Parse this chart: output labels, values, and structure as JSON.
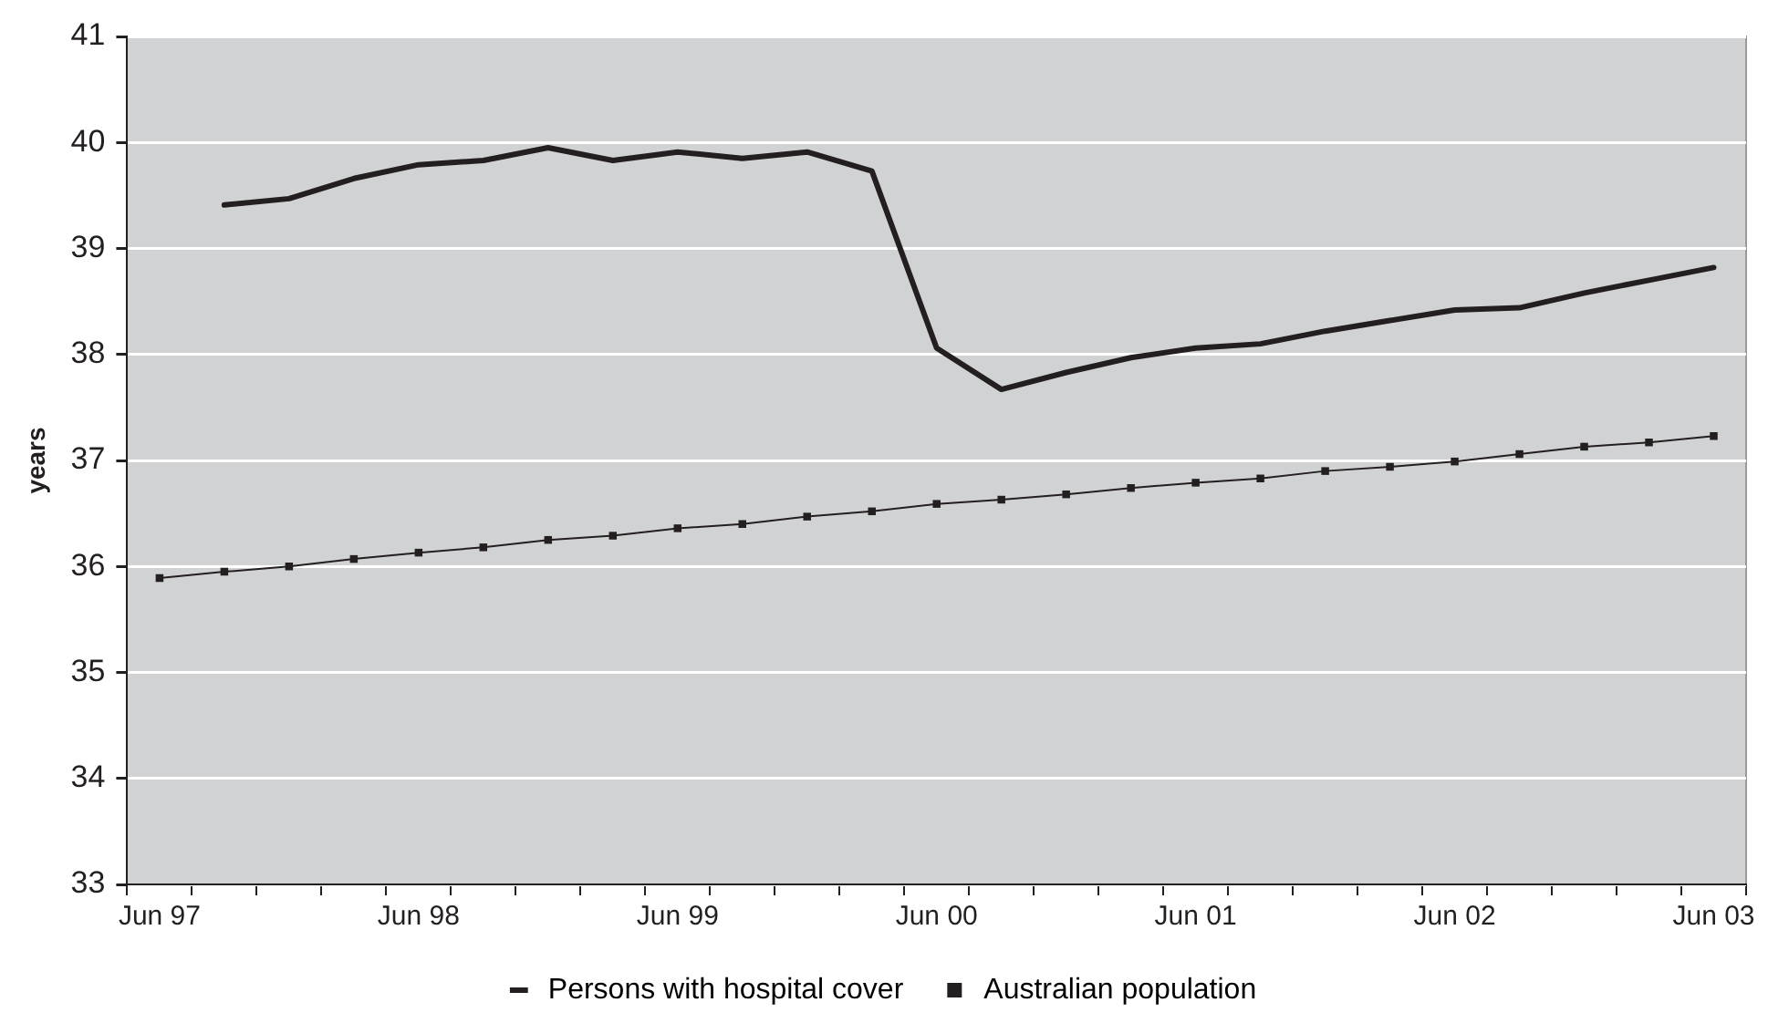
{
  "chart_data": {
    "type": "line",
    "ylabel": "years",
    "categories": [
      "Jun 97",
      null,
      null,
      null,
      "Jun 98",
      null,
      null,
      null,
      "Jun 99",
      null,
      null,
      null,
      "Jun 00",
      null,
      null,
      null,
      "Jun 01",
      null,
      null,
      null,
      "Jun 02",
      null,
      null,
      null,
      "Jun 03"
    ],
    "series": [
      {
        "name": "Persons with hospital cover",
        "color": "#231f20",
        "marker": "none",
        "values": [
          null,
          39.41,
          39.47,
          39.66,
          39.79,
          39.83,
          39.95,
          39.83,
          39.91,
          39.85,
          39.91,
          39.73,
          38.06,
          37.67,
          37.83,
          37.97,
          38.06,
          38.1,
          38.22,
          38.32,
          38.42,
          38.44,
          38.58,
          38.7,
          38.82
        ]
      },
      {
        "name": "Australian population",
        "color": "#231f20",
        "marker": "square",
        "values": [
          35.89,
          35.95,
          36.0,
          36.07,
          36.13,
          36.18,
          36.25,
          36.29,
          36.36,
          36.4,
          36.47,
          36.52,
          36.59,
          36.63,
          36.68,
          36.74,
          36.79,
          36.83,
          36.9,
          36.94,
          36.99,
          37.06,
          37.13,
          37.17,
          37.23
        ]
      }
    ],
    "ylim": [
      33,
      41
    ],
    "yticks": [
      33,
      34,
      35,
      36,
      37,
      38,
      39,
      40,
      41
    ],
    "grid": "y",
    "legend": "bottom"
  }
}
